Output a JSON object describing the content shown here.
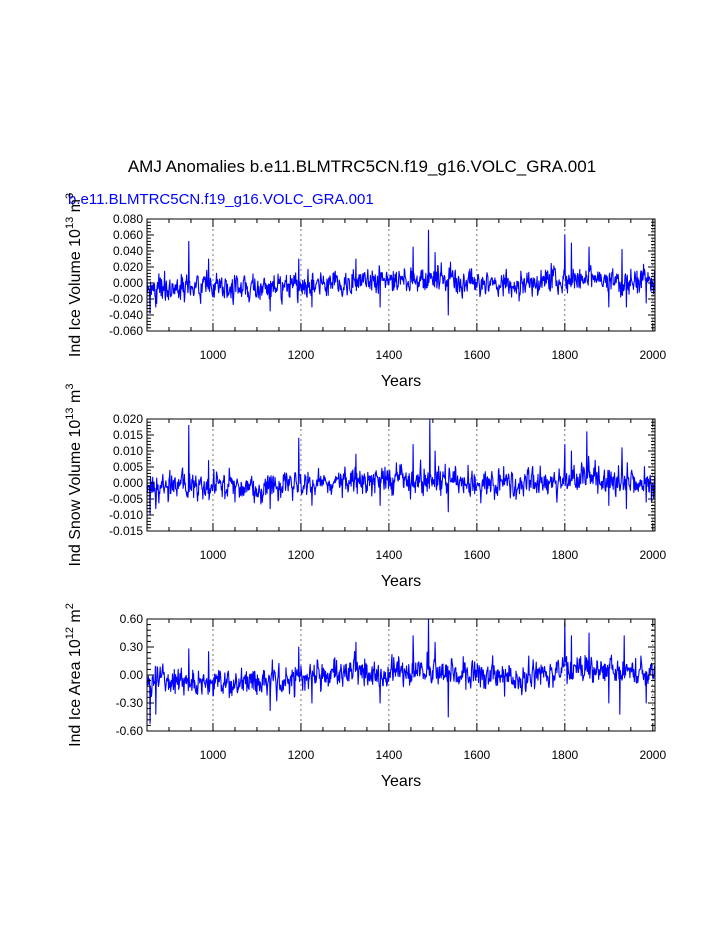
{
  "figure": {
    "title": "AMJ Anomalies b.e11.BLMTRC5CN.f19_g16.VOLC_GRA.001",
    "subtitle": "b.e11.BLMTRC5CN.f19_g16.VOLC_GRA.001",
    "series_color": "#0000ff"
  },
  "chart_data": [
    {
      "type": "line",
      "title": "",
      "xlabel": "Years",
      "ylabel": "Ind Ice Volume 10",
      "ylabel_exp": "13",
      "ylabel_unit": " m",
      "ylabel_unit_exp": "3",
      "xlim": [
        850,
        2005
      ],
      "ylim": [
        -0.06,
        0.08
      ],
      "xticks": [
        1000,
        1200,
        1400,
        1600,
        1800,
        2000
      ],
      "yticks": [
        -0.06,
        -0.04,
        -0.02,
        0.0,
        0.02,
        0.04,
        0.06,
        0.08
      ],
      "ytick_labels": [
        "-0.060",
        "-0.040",
        "-0.020",
        "0.000",
        "0.020",
        "0.040",
        "0.060",
        "0.080"
      ],
      "vgrid": [
        1000,
        1200,
        1400,
        1600,
        1800,
        2000
      ],
      "series_name": "Ind Ice Volume",
      "x_start": 850,
      "x_step": 1,
      "noise_sd": 0.011,
      "peaks": [
        [
          851,
          -0.012
        ],
        [
          857,
          -0.038
        ],
        [
          870,
          -0.03
        ],
        [
          945,
          0.052
        ],
        [
          990,
          0.03
        ],
        [
          1130,
          -0.035
        ],
        [
          1195,
          0.03
        ],
        [
          1225,
          -0.03
        ],
        [
          1325,
          0.03
        ],
        [
          1380,
          -0.03
        ],
        [
          1490,
          0.066
        ],
        [
          1455,
          0.045
        ],
        [
          1505,
          0.038
        ],
        [
          1535,
          -0.04
        ],
        [
          1800,
          0.06
        ],
        [
          1815,
          0.05
        ],
        [
          1855,
          0.045
        ],
        [
          1900,
          -0.03
        ],
        [
          1930,
          0.042
        ],
        [
          1940,
          -0.03
        ],
        [
          1985,
          -0.025
        ],
        [
          2004,
          0.015
        ]
      ],
      "trend": [
        [
          850,
          -0.005
        ],
        [
          1100,
          -0.008
        ],
        [
          1250,
          0.0
        ],
        [
          1500,
          0.005
        ],
        [
          1600,
          0.0
        ],
        [
          1700,
          -0.003
        ],
        [
          1850,
          0.008
        ],
        [
          1950,
          0.0
        ],
        [
          2005,
          0.0
        ]
      ]
    },
    {
      "type": "line",
      "title": "",
      "xlabel": "Years",
      "ylabel": "Ind Snow Volume 10",
      "ylabel_exp": "13",
      "ylabel_unit": " m",
      "ylabel_unit_exp": "3",
      "xlim": [
        850,
        2005
      ],
      "ylim": [
        -0.015,
        0.02
      ],
      "xticks": [
        1000,
        1200,
        1400,
        1600,
        1800,
        2000
      ],
      "yticks": [
        -0.015,
        -0.01,
        -0.005,
        0.0,
        0.005,
        0.01,
        0.015,
        0.02
      ],
      "ytick_labels": [
        "-0.015",
        "-0.010",
        "-0.005",
        "0.000",
        "0.005",
        "0.010",
        "0.015",
        "0.020"
      ],
      "vgrid": [
        1000,
        1200,
        1400,
        1600,
        1800,
        2000
      ],
      "series_name": "Ind Snow Volume",
      "x_start": 850,
      "x_step": 1,
      "noise_sd": 0.0028,
      "peaks": [
        [
          851,
          -0.003
        ],
        [
          857,
          -0.01
        ],
        [
          870,
          -0.008
        ],
        [
          945,
          0.018
        ],
        [
          990,
          0.007
        ],
        [
          1130,
          -0.008
        ],
        [
          1195,
          0.014
        ],
        [
          1225,
          -0.007
        ],
        [
          1325,
          0.009
        ],
        [
          1380,
          -0.007
        ],
        [
          1493,
          0.02
        ],
        [
          1455,
          0.012
        ],
        [
          1505,
          0.01
        ],
        [
          1535,
          -0.009
        ],
        [
          1800,
          0.012
        ],
        [
          1815,
          0.01
        ],
        [
          1850,
          0.016
        ],
        [
          1900,
          -0.007
        ],
        [
          1930,
          0.011
        ],
        [
          1940,
          -0.008
        ],
        [
          1985,
          -0.006
        ],
        [
          2004,
          0.002
        ]
      ],
      "trend": [
        [
          850,
          -0.0012
        ],
        [
          1100,
          -0.0018
        ],
        [
          1250,
          0.0
        ],
        [
          1500,
          0.0012
        ],
        [
          1600,
          0.0
        ],
        [
          1700,
          -0.0008
        ],
        [
          1850,
          0.002
        ],
        [
          1950,
          0.0
        ],
        [
          2005,
          0.0
        ]
      ]
    },
    {
      "type": "line",
      "title": "",
      "xlabel": "Years",
      "ylabel": "Ind Ice Area 10",
      "ylabel_exp": "12",
      "ylabel_unit": " m",
      "ylabel_unit_exp": "2",
      "xlim": [
        850,
        2005
      ],
      "ylim": [
        -0.6,
        0.6
      ],
      "xticks": [
        1000,
        1200,
        1400,
        1600,
        1800,
        2000
      ],
      "yticks": [
        -0.6,
        -0.3,
        0.0,
        0.3,
        0.6
      ],
      "ytick_labels": [
        "-0.60",
        "-0.30",
        "0.00",
        "0.30",
        "0.60"
      ],
      "vgrid": [
        1000,
        1200,
        1400,
        1600,
        1800,
        2000
      ],
      "series_name": "Ind Ice Area",
      "x_start": 850,
      "x_step": 1,
      "noise_sd": 0.1,
      "peaks": [
        [
          851,
          -0.1
        ],
        [
          857,
          -0.52
        ],
        [
          870,
          -0.42
        ],
        [
          945,
          0.28
        ],
        [
          990,
          0.25
        ],
        [
          1130,
          -0.38
        ],
        [
          1195,
          0.3
        ],
        [
          1225,
          -0.3
        ],
        [
          1325,
          0.35
        ],
        [
          1380,
          -0.3
        ],
        [
          1490,
          0.6
        ],
        [
          1455,
          0.42
        ],
        [
          1505,
          0.35
        ],
        [
          1535,
          -0.45
        ],
        [
          1800,
          0.57
        ],
        [
          1815,
          0.42
        ],
        [
          1855,
          0.45
        ],
        [
          1900,
          -0.3
        ],
        [
          1925,
          -0.42
        ],
        [
          1935,
          0.42
        ],
        [
          1985,
          -0.3
        ],
        [
          2004,
          0.1
        ]
      ],
      "trend": [
        [
          850,
          -0.05
        ],
        [
          1100,
          -0.08
        ],
        [
          1250,
          0.0
        ],
        [
          1500,
          0.06
        ],
        [
          1600,
          0.0
        ],
        [
          1700,
          -0.03
        ],
        [
          1850,
          0.08
        ],
        [
          1950,
          0.0
        ],
        [
          2005,
          0.0
        ]
      ]
    }
  ]
}
